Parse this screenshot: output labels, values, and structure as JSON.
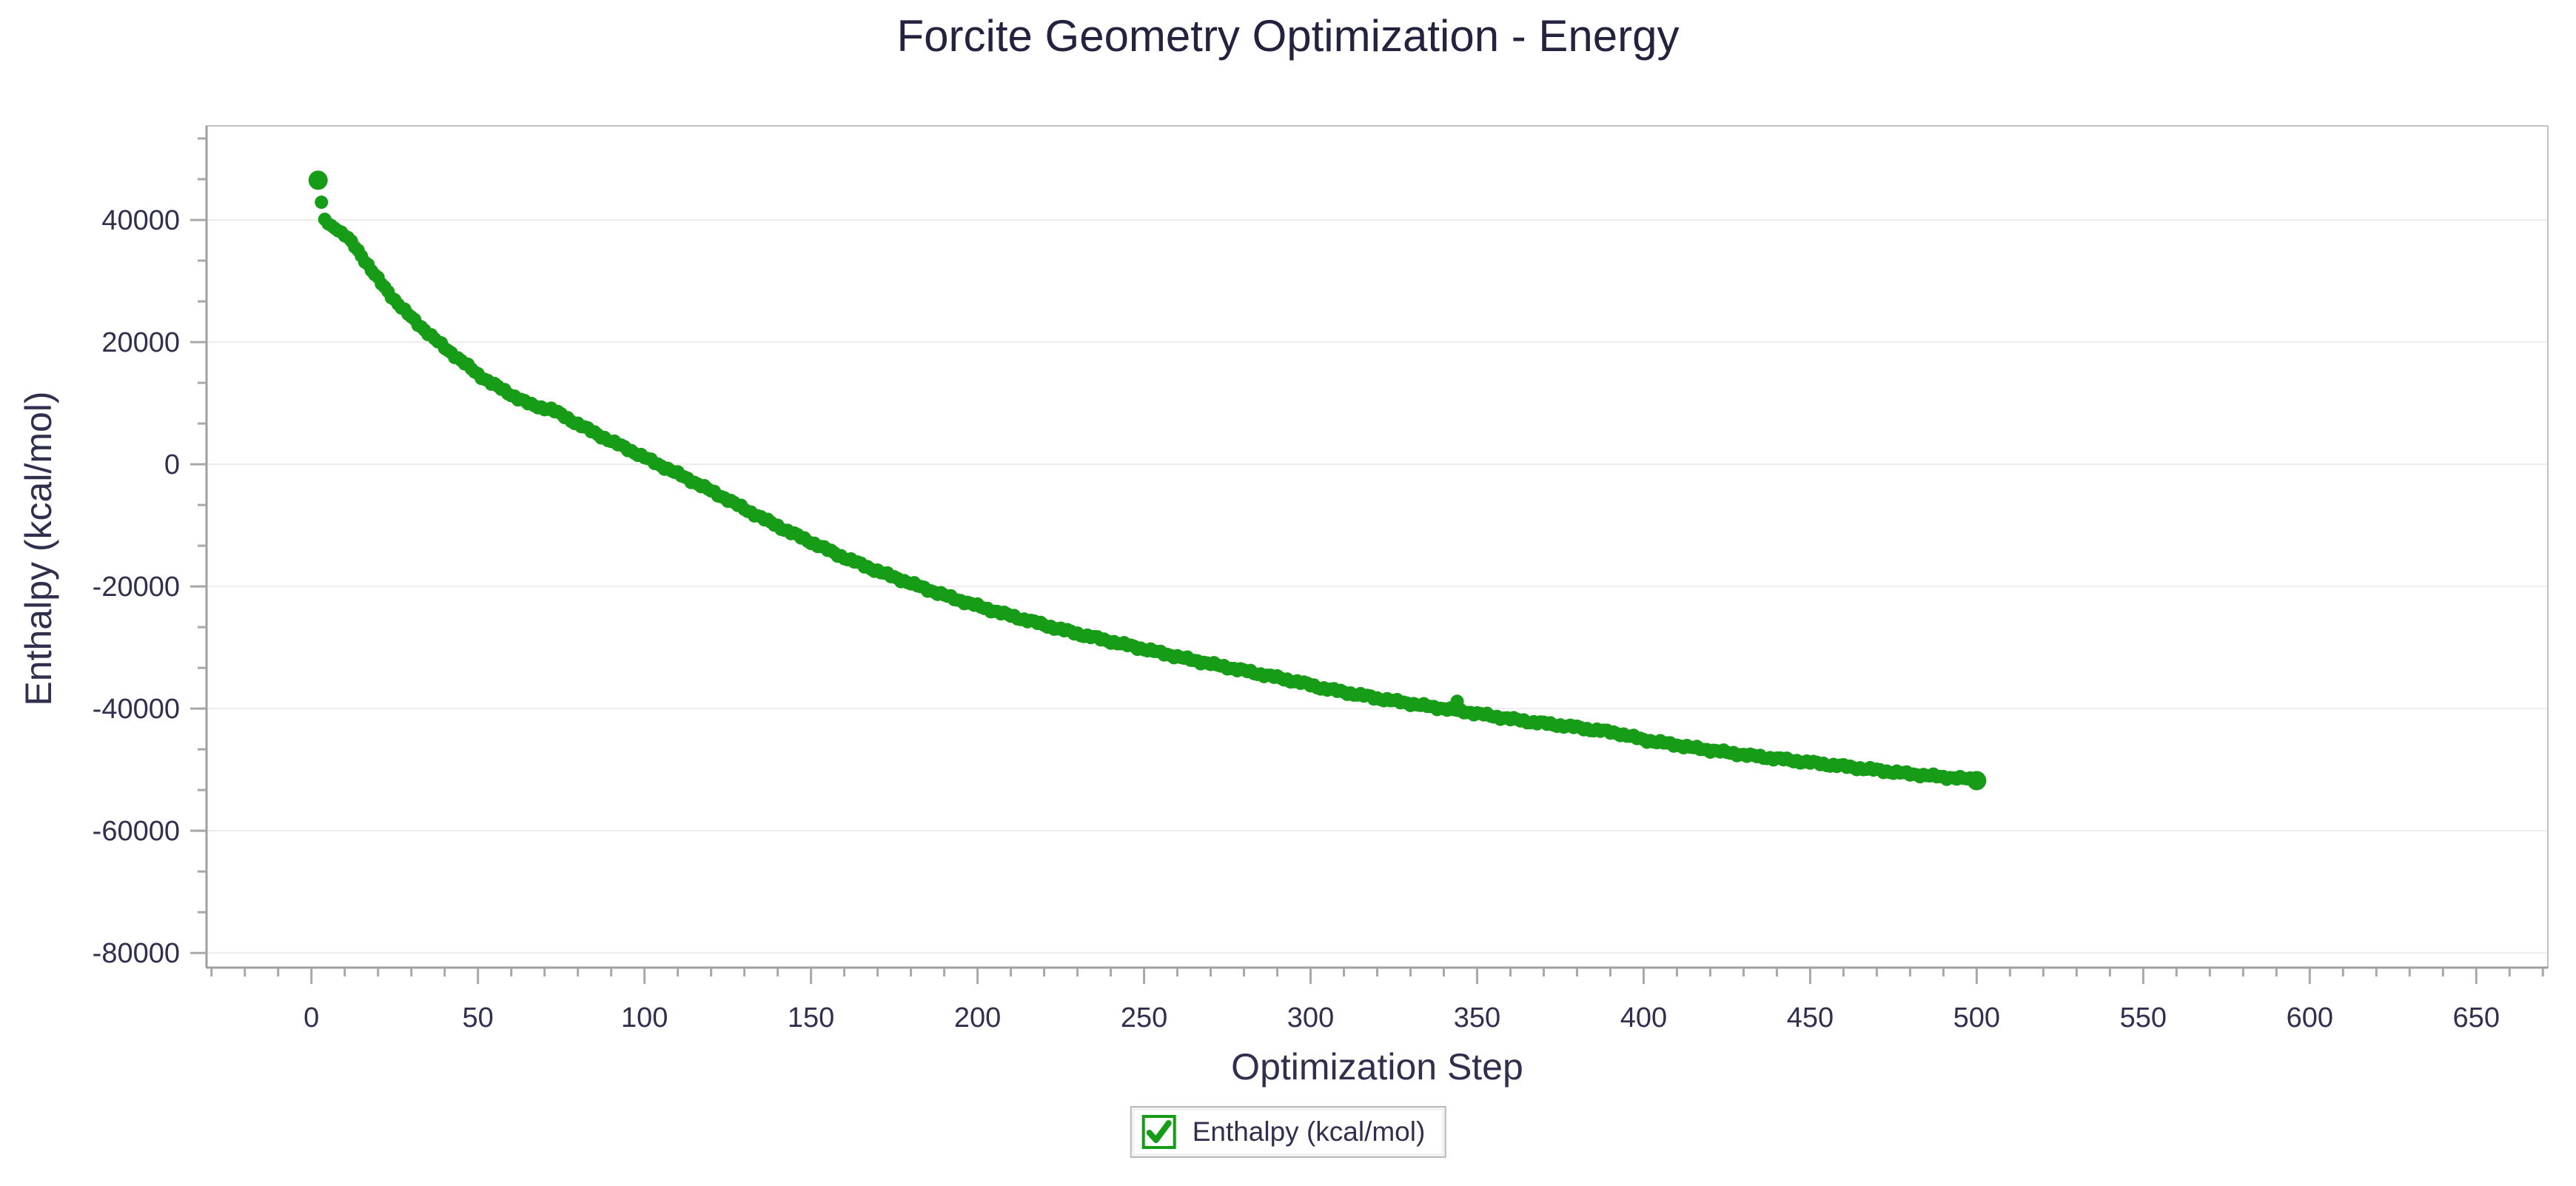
{
  "page": {
    "title": "Forcite Geometry Optimization - Energy"
  },
  "colors": {
    "series_green": "#169c16",
    "text_navy": "#30304e",
    "title_navy": "#23233f",
    "gridline": "#ececec",
    "axis_frame": "#c2c2c2",
    "axis_main": "#9f9f9f",
    "tick": "#a8a8a8",
    "legend_border": "#b9b9b9"
  },
  "legend": {
    "items": [
      {
        "label": "Enthalpy (kcal/mol)",
        "checked": true,
        "checkmark_glyph": "✔"
      }
    ]
  },
  "chart_data": {
    "type": "scatter",
    "title": "Forcite Geometry Optimization - Energy",
    "xlabel": "Optimization Step",
    "ylabel": "Enthalpy (kcal/mol)",
    "xlim": [
      -31.5,
      671.5
    ],
    "ylim": [
      -82400,
      55400
    ],
    "xticks": [
      0,
      50,
      100,
      150,
      200,
      250,
      300,
      350,
      400,
      450,
      500,
      550,
      600,
      650
    ],
    "xtick_labels": [
      "0",
      "50",
      "100",
      "150",
      "200",
      "250",
      "300",
      "350",
      "400",
      "450",
      "500",
      "550",
      "600",
      "650"
    ],
    "x_minor_interval": 10,
    "yticks": [
      40000,
      20000,
      0,
      -20000,
      -40000,
      -60000,
      -80000
    ],
    "ytick_labels": [
      "40000",
      "20000",
      "0",
      "-20000",
      "-40000",
      "-60000",
      "-80000"
    ],
    "y_minor_interval": 6666.67,
    "grid": "horizontal-major-only",
    "legend_position": "bottom-center",
    "series": [
      {
        "name": "Enthalpy (kcal/mol)",
        "color": "#169c16",
        "marker": "circle",
        "marker_radius": 9,
        "first_point_radius": 13,
        "last_point_radius": 13,
        "step_min": 2,
        "step_max": 500,
        "anchors": [
          [
            2,
            46500
          ],
          [
            3,
            42900
          ],
          [
            4,
            40100
          ],
          [
            5,
            39400
          ],
          [
            7,
            38700
          ],
          [
            9,
            37900
          ],
          [
            11,
            37000
          ],
          [
            13,
            35700
          ],
          [
            15,
            34200
          ],
          [
            17,
            32600
          ],
          [
            19,
            31000
          ],
          [
            22,
            28900
          ],
          [
            25,
            26900
          ],
          [
            28,
            25100
          ],
          [
            31,
            23500
          ],
          [
            34,
            22000
          ],
          [
            37,
            20500
          ],
          [
            40,
            19100
          ],
          [
            43,
            17800
          ],
          [
            46,
            16500
          ],
          [
            50,
            14700
          ],
          [
            54,
            13300
          ],
          [
            58,
            12000
          ],
          [
            62,
            10800
          ],
          [
            66,
            9700
          ],
          [
            69,
            9300
          ],
          [
            72,
            9000
          ],
          [
            75,
            8100
          ],
          [
            79,
            6900
          ],
          [
            83,
            5700
          ],
          [
            87,
            4600
          ],
          [
            91,
            3500
          ],
          [
            95,
            2500
          ],
          [
            100,
            1100
          ],
          [
            106,
            -500
          ],
          [
            112,
            -2100
          ],
          [
            118,
            -3800
          ],
          [
            124,
            -5500
          ],
          [
            130,
            -7300
          ],
          [
            137,
            -9300
          ],
          [
            144,
            -11200
          ],
          [
            151,
            -13000
          ],
          [
            158,
            -14800
          ],
          [
            165,
            -16400
          ],
          [
            172,
            -17900
          ],
          [
            179,
            -19300
          ],
          [
            186,
            -20700
          ],
          [
            193,
            -22000
          ],
          [
            200,
            -23200
          ],
          [
            208,
            -24500
          ],
          [
            216,
            -25700
          ],
          [
            224,
            -26900
          ],
          [
            232,
            -28000
          ],
          [
            240,
            -29000
          ],
          [
            248,
            -30000
          ],
          [
            256,
            -31000
          ],
          [
            264,
            -32000
          ],
          [
            272,
            -32900
          ],
          [
            280,
            -33800
          ],
          [
            288,
            -34700
          ],
          [
            296,
            -35600
          ],
          [
            304,
            -36700
          ],
          [
            312,
            -37500
          ],
          [
            320,
            -38300
          ],
          [
            328,
            -39000
          ],
          [
            336,
            -39700
          ],
          [
            344,
            -40300
          ],
          [
            352,
            -41000
          ],
          [
            360,
            -41700
          ],
          [
            368,
            -42300
          ],
          [
            376,
            -42800
          ],
          [
            384,
            -43400
          ],
          [
            392,
            -44000
          ],
          [
            400,
            -45100
          ],
          [
            408,
            -45800
          ],
          [
            416,
            -46500
          ],
          [
            424,
            -47100
          ],
          [
            432,
            -47700
          ],
          [
            440,
            -48200
          ],
          [
            448,
            -48700
          ],
          [
            456,
            -49200
          ],
          [
            464,
            -49700
          ],
          [
            472,
            -50200
          ],
          [
            480,
            -50700
          ],
          [
            486,
            -51000
          ],
          [
            492,
            -51300
          ],
          [
            497,
            -51500
          ],
          [
            500,
            -51700
          ]
        ],
        "outliers": [
          [
            344,
            -38800
          ]
        ]
      }
    ]
  }
}
